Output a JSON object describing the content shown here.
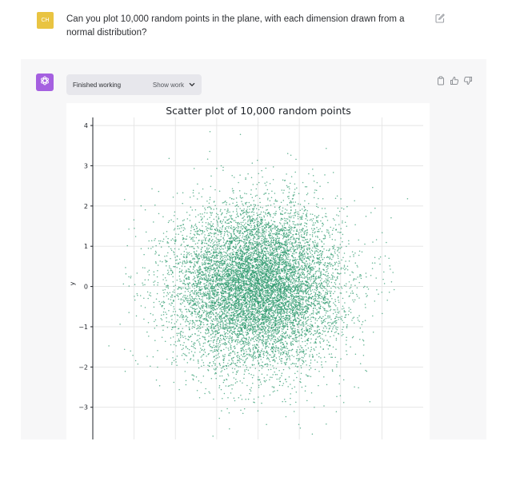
{
  "user_message": {
    "avatar_initials": "CH",
    "text": "Can you plot 10,000 random points in the plane, with each dimension drawn from a normal distribution?"
  },
  "assistant": {
    "status_label": "Finished working",
    "show_work_label": "Show work"
  },
  "colors": {
    "user_avatar": "#e9c442",
    "assistant_avatar": "#a560e0",
    "points": "#2e9a6e",
    "assistant_bg": "#f7f7f8"
  },
  "icons": [
    "edit-icon",
    "openai-logo-icon",
    "chevron-down-icon",
    "copy-icon",
    "thumbs-up-icon",
    "thumbs-down-icon"
  ],
  "chart_data": {
    "type": "scatter",
    "title": "Scatter plot of 10,000 random points",
    "xlabel": "",
    "ylabel": "y",
    "ylim": [
      -3.8,
      4.2
    ],
    "xlim": [
      -4,
      4
    ],
    "yticks": [
      4,
      3,
      2,
      1,
      0,
      -1,
      -2,
      -3
    ],
    "ytick_labels": [
      "4",
      "3",
      "2",
      "1",
      "0",
      "−1",
      "−2",
      "−3"
    ],
    "xticks": [
      -3,
      -2,
      -1,
      0,
      1,
      2,
      3
    ],
    "grid": true,
    "point_count": 10000,
    "distribution": "standard normal in x and y",
    "series": [
      {
        "color": "#2e9a6e"
      }
    ]
  }
}
